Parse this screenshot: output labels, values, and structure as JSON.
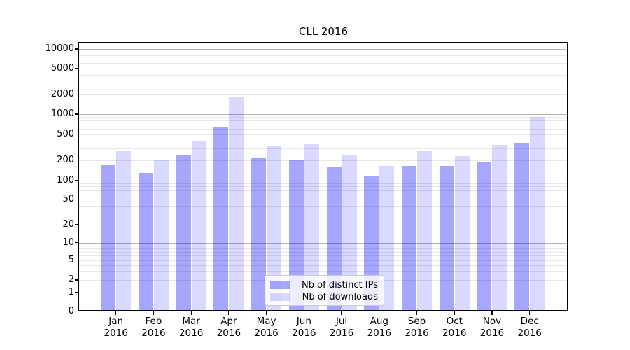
{
  "title": "CLL 2016",
  "chart_data": {
    "type": "bar",
    "title": "CLL 2016",
    "categories": [
      "Jan 2016",
      "Feb 2016",
      "Mar 2016",
      "Apr 2016",
      "May 2016",
      "Jun 2016",
      "Jul 2016",
      "Aug 2016",
      "Sep 2016",
      "Oct 2016",
      "Nov 2016",
      "Dec 2016"
    ],
    "series": [
      {
        "name": "Nb of distinct IPs",
        "color": "rgba(0,0,255,0.35)",
        "values": [
          172,
          128,
          235,
          650,
          212,
          198,
          157,
          116,
          164,
          162,
          188,
          366
        ]
      },
      {
        "name": "Nb of downloads",
        "color": "rgba(0,0,255,0.15)",
        "values": [
          278,
          196,
          400,
          1850,
          333,
          362,
          236,
          162,
          278,
          230,
          342,
          900
        ]
      }
    ],
    "yscale": "symlog",
    "ytick_labels": [
      "0",
      "1",
      "2",
      "5",
      "10",
      "20",
      "50",
      "100",
      "200",
      "500",
      "1000",
      "2000",
      "5000",
      "10000"
    ],
    "ylim": [
      0,
      14000
    ],
    "xlabel": "",
    "ylabel": "",
    "grid": "horizontal log major+minor",
    "legend_position": "lower center"
  },
  "legend": {
    "items": [
      "Nb of distinct IPs",
      "Nb of downloads"
    ]
  },
  "colors": {
    "bar_ips": "rgba(0,0,255,0.35)",
    "bar_downloads": "rgba(0,0,255,0.15)",
    "grid_major": "#b4b4b4",
    "grid_minor": "#e8e8e8",
    "spine": "#000000",
    "text": "#000000",
    "legend_border": "#cccccc",
    "legend_bg": "rgba(255,255,255,0.8)"
  }
}
